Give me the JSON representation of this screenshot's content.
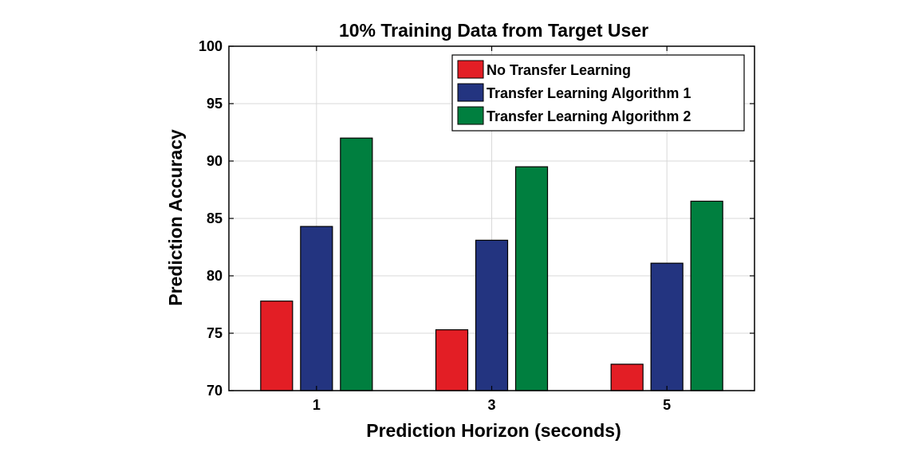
{
  "chart_data": {
    "type": "bar",
    "title": "10% Training Data from Target User",
    "xlabel": "Prediction Horizon (seconds)",
    "ylabel": "Prediction Accuracy",
    "categories": [
      "1",
      "3",
      "5"
    ],
    "ylim": [
      70,
      100
    ],
    "yticks": [
      "70",
      "75",
      "80",
      "85",
      "90",
      "95",
      "100"
    ],
    "grid": true,
    "legend_position": "top-right",
    "series": [
      {
        "name": "No Transfer Learning",
        "color": "#e31e25",
        "values": [
          77.8,
          75.3,
          72.3
        ]
      },
      {
        "name": "Transfer Learning Algorithm 1",
        "color": "#233480",
        "values": [
          84.3,
          83.1,
          81.1
        ]
      },
      {
        "name": "Transfer Learning Algorithm 2",
        "color": "#007f3f",
        "values": [
          92.0,
          89.5,
          86.5
        ]
      }
    ]
  }
}
